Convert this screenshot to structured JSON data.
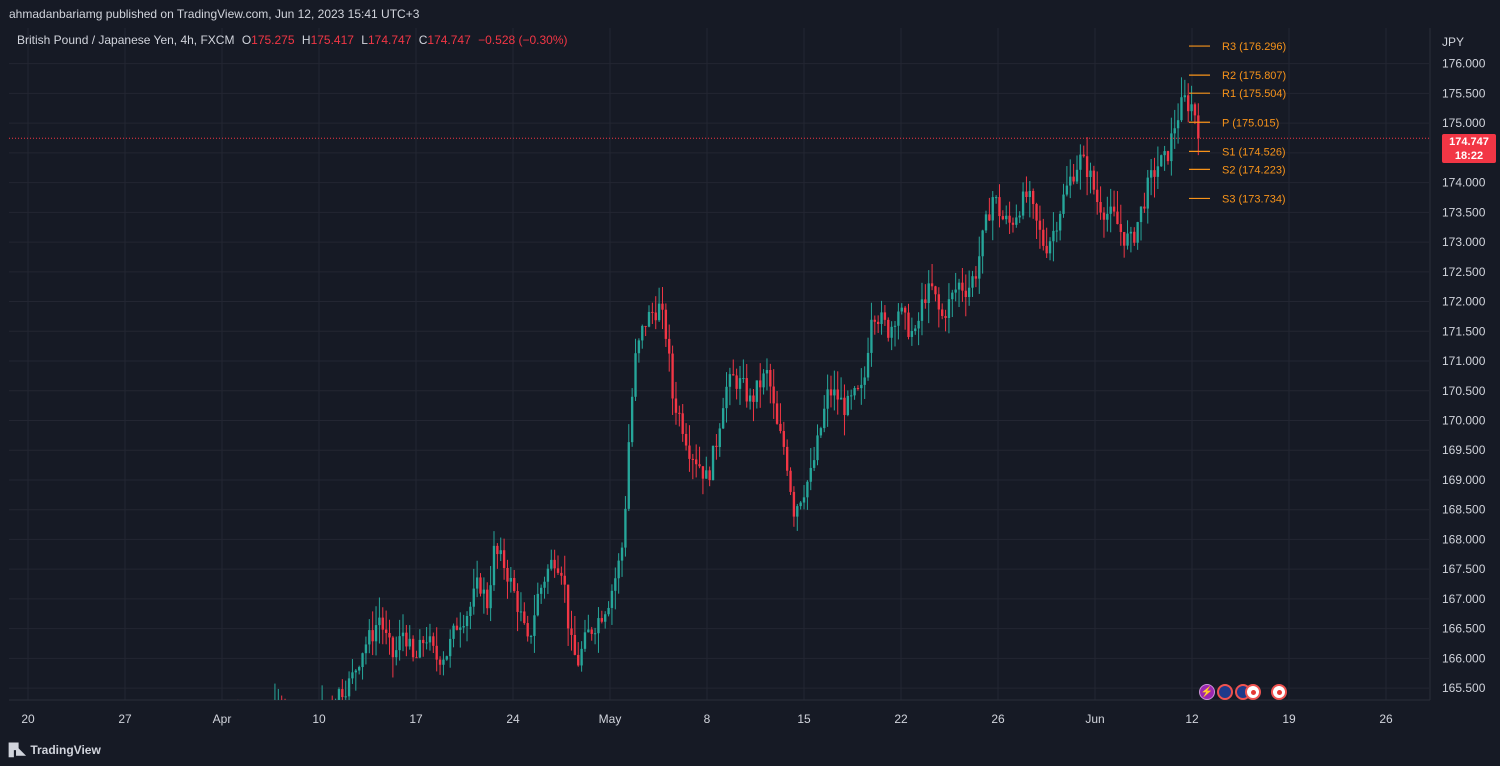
{
  "header": {
    "published": "ahmadanbariamg published on TradingView.com, Jun 12, 2023 15:41 UTC+3"
  },
  "legend": {
    "symbol": "British Pound / Japanese Yen, 4h, FXCM",
    "o_label": "O",
    "o_value": "175.275",
    "h_label": "H",
    "h_value": "175.417",
    "l_label": "L",
    "l_value": "174.747",
    "c_label": "C",
    "c_value": "174.747",
    "change": "−0.528 (−0.30%)"
  },
  "price_badge": {
    "price": "174.747",
    "countdown": "18:22"
  },
  "footer": {
    "brand": "TradingView"
  },
  "events": [
    "bolt-icon",
    "uk-flag-icon",
    "uk-flag-icon",
    "japan-flag-icon",
    "japan-flag-icon"
  ],
  "colors": {
    "up": "#26a69a",
    "down": "#f23645",
    "pivot": "#f7931a",
    "grid": "#232632",
    "bg": "#161a25",
    "text": "#d1d4dc"
  },
  "chart_data": {
    "type": "candlestick",
    "currency": "JPY",
    "y_ticks": [
      "165.500",
      "166.000",
      "166.500",
      "167.000",
      "167.500",
      "168.000",
      "168.500",
      "169.000",
      "169.500",
      "170.000",
      "170.500",
      "171.000",
      "171.500",
      "172.000",
      "172.500",
      "173.000",
      "173.500",
      "174.000",
      "174.500",
      "175.000",
      "175.500",
      "176.000"
    ],
    "x_ticks": [
      "20",
      "27",
      "Apr",
      "10",
      "17",
      "24",
      "May",
      "8",
      "15",
      "22",
      "26",
      "Jun",
      "12",
      "19",
      "26"
    ],
    "ylim": [
      165.3,
      176.6
    ],
    "last_price": 174.747,
    "pivots": [
      {
        "label": "R3 (176.296)",
        "value": 176.296
      },
      {
        "label": "R2 (175.807)",
        "value": 175.807
      },
      {
        "label": "R1 (175.504)",
        "value": 175.504
      },
      {
        "label": "P (175.015)",
        "value": 175.015
      },
      {
        "label": "S1 (174.526)",
        "value": 174.526
      },
      {
        "label": "S2 (174.223)",
        "value": 174.223
      },
      {
        "label": "S3 (173.734)",
        "value": 173.734
      }
    ],
    "close_path": [
      [
        0.0,
        164.8
      ],
      [
        0.04,
        164.9
      ],
      [
        0.062,
        165.1
      ],
      [
        0.066,
        165.4
      ],
      [
        0.07,
        164.9
      ],
      [
        0.082,
        164.7
      ],
      [
        0.095,
        165.2
      ],
      [
        0.103,
        165.4
      ],
      [
        0.113,
        165.6
      ],
      [
        0.122,
        166.2
      ],
      [
        0.128,
        166.4
      ],
      [
        0.133,
        166.7
      ],
      [
        0.138,
        166.3
      ],
      [
        0.143,
        166.0
      ],
      [
        0.15,
        166.5
      ],
      [
        0.157,
        165.9
      ],
      [
        0.165,
        166.4
      ],
      [
        0.172,
        166.0
      ],
      [
        0.18,
        166.1
      ],
      [
        0.187,
        166.6
      ],
      [
        0.195,
        166.8
      ],
      [
        0.202,
        167.3
      ],
      [
        0.208,
        166.9
      ],
      [
        0.212,
        167.8
      ],
      [
        0.219,
        167.6
      ],
      [
        0.225,
        167.2
      ],
      [
        0.23,
        166.8
      ],
      [
        0.236,
        166.2
      ],
      [
        0.242,
        167.0
      ],
      [
        0.248,
        167.4
      ],
      [
        0.254,
        167.7
      ],
      [
        0.26,
        167.5
      ],
      [
        0.265,
        166.3
      ],
      [
        0.27,
        165.9
      ],
      [
        0.277,
        166.4
      ],
      [
        0.283,
        166.6
      ],
      [
        0.288,
        166.8
      ],
      [
        0.292,
        167.0
      ],
      [
        0.298,
        167.5
      ],
      [
        0.302,
        168.0
      ],
      [
        0.306,
        169.8
      ],
      [
        0.31,
        171.0
      ],
      [
        0.316,
        171.6
      ],
      [
        0.321,
        171.8
      ],
      [
        0.327,
        171.9
      ],
      [
        0.332,
        171.4
      ],
      [
        0.336,
        170.4
      ],
      [
        0.342,
        170.0
      ],
      [
        0.348,
        169.5
      ],
      [
        0.354,
        169.3
      ],
      [
        0.36,
        169.0
      ],
      [
        0.366,
        169.6
      ],
      [
        0.372,
        170.5
      ],
      [
        0.378,
        170.7
      ],
      [
        0.384,
        170.6
      ],
      [
        0.39,
        170.3
      ],
      [
        0.396,
        170.6
      ],
      [
        0.402,
        170.8
      ],
      [
        0.408,
        169.9
      ],
      [
        0.414,
        169.5
      ],
      [
        0.42,
        168.5
      ],
      [
        0.426,
        168.8
      ],
      [
        0.432,
        169.1
      ],
      [
        0.438,
        169.8
      ],
      [
        0.444,
        170.5
      ],
      [
        0.45,
        170.4
      ],
      [
        0.456,
        170.2
      ],
      [
        0.462,
        170.4
      ],
      [
        0.468,
        170.5
      ],
      [
        0.474,
        171.9
      ],
      [
        0.48,
        171.7
      ],
      [
        0.486,
        171.5
      ],
      [
        0.492,
        171.9
      ],
      [
        0.498,
        171.6
      ],
      [
        0.504,
        171.4
      ],
      [
        0.51,
        172.1
      ],
      [
        0.516,
        172.2
      ],
      [
        0.522,
        171.7
      ],
      [
        0.528,
        172.0
      ],
      [
        0.534,
        172.3
      ],
      [
        0.54,
        172.2
      ],
      [
        0.546,
        172.5
      ],
      [
        0.552,
        173.2
      ],
      [
        0.558,
        173.8
      ],
      [
        0.564,
        173.4
      ],
      [
        0.57,
        173.3
      ],
      [
        0.576,
        173.6
      ],
      [
        0.582,
        173.8
      ],
      [
        0.588,
        173.3
      ],
      [
        0.594,
        172.9
      ],
      [
        0.6,
        173.2
      ],
      [
        0.606,
        173.7
      ],
      [
        0.612,
        174.1
      ],
      [
        0.618,
        174.4
      ],
      [
        0.624,
        174.2
      ],
      [
        0.63,
        173.7
      ],
      [
        0.636,
        173.5
      ],
      [
        0.642,
        173.4
      ],
      [
        0.648,
        173.1
      ],
      [
        0.654,
        173.0
      ],
      [
        0.66,
        173.5
      ],
      [
        0.666,
        174.0
      ],
      [
        0.672,
        174.3
      ],
      [
        0.678,
        174.4
      ],
      [
        0.684,
        175.0
      ],
      [
        0.69,
        175.4
      ],
      [
        0.694,
        175.3
      ],
      [
        0.697,
        175.3
      ],
      [
        0.7,
        174.75
      ]
    ]
  }
}
